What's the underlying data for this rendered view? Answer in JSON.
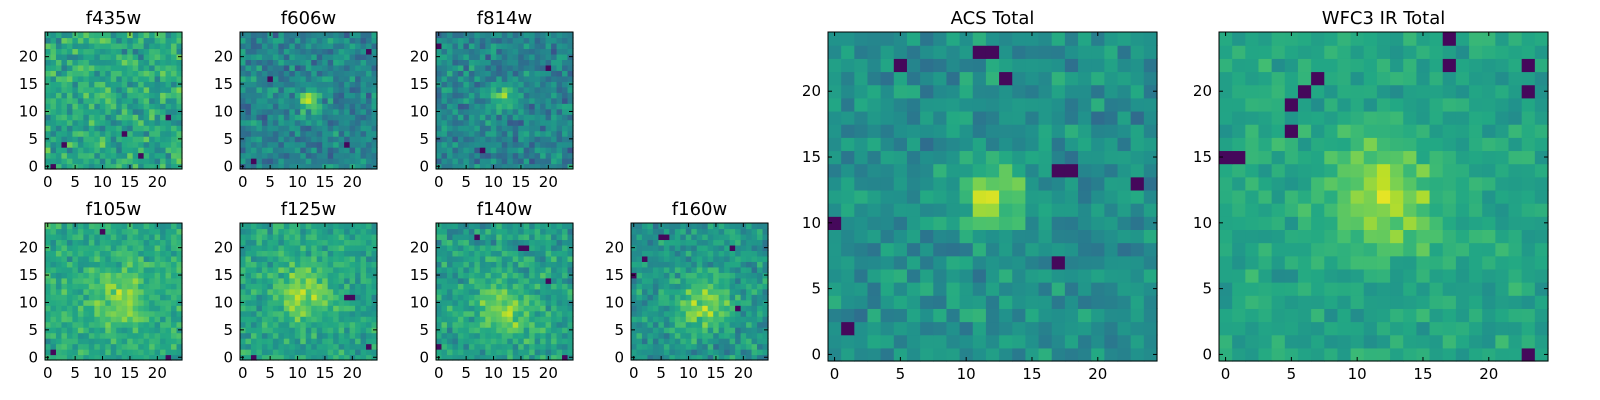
{
  "figure": {
    "description_colormap": "viridis",
    "colors": {
      "low": "#440154",
      "mid": "#21918c",
      "high": "#fde725"
    }
  },
  "chart_data": [
    {
      "type": "heatmap",
      "title": "f435w",
      "colormap": "viridis",
      "grid": false,
      "xlim": [
        0,
        24
      ],
      "ylim": [
        0,
        24
      ],
      "xticks": [
        "0",
        "5",
        "10",
        "15",
        "20"
      ],
      "yticks": [
        "0",
        "5",
        "10",
        "15",
        "20"
      ],
      "peak": {
        "x": 12,
        "y": 12,
        "amp": 0.05,
        "sigma": 3
      },
      "noise": 0.22,
      "bias": 0.6,
      "seed": 11,
      "dark_pixels": [
        [
          3,
          4
        ],
        [
          17,
          2
        ],
        [
          22,
          9
        ],
        [
          1,
          0
        ],
        [
          14,
          6
        ]
      ]
    },
    {
      "type": "heatmap",
      "title": "f606w",
      "colormap": "viridis",
      "grid": false,
      "xlim": [
        0,
        24
      ],
      "ylim": [
        0,
        24
      ],
      "xticks": [
        "0",
        "5",
        "10",
        "15",
        "20"
      ],
      "yticks": [
        "0",
        "5",
        "10",
        "15",
        "20"
      ],
      "peak": {
        "x": 12,
        "y": 12,
        "amp": 0.32,
        "sigma": 1.6
      },
      "noise": 0.2,
      "bias": 0.45,
      "seed": 23,
      "dark_pixels": [
        [
          2,
          1
        ],
        [
          19,
          4
        ],
        [
          23,
          21
        ],
        [
          5,
          16
        ]
      ]
    },
    {
      "type": "heatmap",
      "title": "f814w",
      "colormap": "viridis",
      "grid": false,
      "xlim": [
        0,
        24
      ],
      "ylim": [
        0,
        24
      ],
      "xticks": [
        "0",
        "5",
        "10",
        "15",
        "20"
      ],
      "yticks": [
        "0",
        "5",
        "10",
        "15",
        "20"
      ],
      "peak": {
        "x": 12,
        "y": 13,
        "amp": 0.35,
        "sigma": 1.6
      },
      "noise": 0.2,
      "bias": 0.45,
      "seed": 37,
      "dark_pixels": [
        [
          0,
          22
        ],
        [
          8,
          3
        ],
        [
          20,
          18
        ]
      ]
    },
    {
      "type": "heatmap",
      "title": "f105w",
      "colormap": "viridis",
      "grid": false,
      "xlim": [
        0,
        24
      ],
      "ylim": [
        0,
        24
      ],
      "xticks": [
        "0",
        "5",
        "10",
        "15",
        "20"
      ],
      "yticks": [
        "0",
        "5",
        "10",
        "15",
        "20"
      ],
      "peak": {
        "x": 13,
        "y": 11,
        "amp": 0.2,
        "sigma": 4
      },
      "noise": 0.16,
      "bias": 0.6,
      "seed": 41,
      "dark_pixels": [
        [
          1,
          1
        ],
        [
          22,
          0
        ],
        [
          10,
          23
        ]
      ]
    },
    {
      "type": "heatmap",
      "title": "f125w",
      "colormap": "viridis",
      "grid": false,
      "xlim": [
        0,
        24
      ],
      "ylim": [
        0,
        24
      ],
      "xticks": [
        "0",
        "5",
        "10",
        "15",
        "20"
      ],
      "yticks": [
        "0",
        "5",
        "10",
        "15",
        "20"
      ],
      "peak": {
        "x": 11,
        "y": 12,
        "amp": 0.25,
        "sigma": 3.5
      },
      "noise": 0.16,
      "bias": 0.58,
      "seed": 53,
      "dark_pixels": [
        [
          19,
          11
        ],
        [
          20,
          11
        ],
        [
          2,
          0
        ],
        [
          23,
          2
        ]
      ]
    },
    {
      "type": "heatmap",
      "title": "f140w",
      "colormap": "viridis",
      "grid": false,
      "xlim": [
        0,
        24
      ],
      "ylim": [
        0,
        24
      ],
      "xticks": [
        "0",
        "5",
        "10",
        "15",
        "20"
      ],
      "yticks": [
        "0",
        "5",
        "10",
        "15",
        "20"
      ],
      "peak": {
        "x": 12,
        "y": 9,
        "amp": 0.25,
        "sigma": 4
      },
      "noise": 0.18,
      "bias": 0.55,
      "seed": 67,
      "dark_pixels": [
        [
          15,
          20
        ],
        [
          16,
          20
        ],
        [
          23,
          0
        ],
        [
          0,
          2
        ],
        [
          7,
          22
        ],
        [
          20,
          14
        ]
      ]
    },
    {
      "type": "heatmap",
      "title": "f160w",
      "colormap": "viridis",
      "grid": false,
      "xlim": [
        0,
        24
      ],
      "ylim": [
        0,
        24
      ],
      "xticks": [
        "0",
        "5",
        "10",
        "15",
        "20"
      ],
      "yticks": [
        "0",
        "5",
        "10",
        "15",
        "20"
      ],
      "peak": {
        "x": 13,
        "y": 10,
        "amp": 0.3,
        "sigma": 3.5
      },
      "noise": 0.18,
      "bias": 0.52,
      "seed": 79,
      "dark_pixels": [
        [
          5,
          22
        ],
        [
          6,
          22
        ],
        [
          18,
          20
        ],
        [
          0,
          15
        ],
        [
          2,
          18
        ],
        [
          19,
          9
        ]
      ]
    },
    {
      "type": "heatmap",
      "title": "ACS Total",
      "colormap": "viridis",
      "grid": false,
      "xlim": [
        0,
        24
      ],
      "ylim": [
        0,
        24
      ],
      "xticks": [
        "0",
        "5",
        "10",
        "15",
        "20"
      ],
      "yticks": [
        "0",
        "5",
        "10",
        "15",
        "20"
      ],
      "peak": {
        "x": 12,
        "y": 12,
        "amp": 0.4,
        "sigma": 1.8
      },
      "noise": 0.16,
      "bias": 0.5,
      "seed": 97,
      "dark_pixels": [
        [
          11,
          23
        ],
        [
          12,
          23
        ],
        [
          5,
          22
        ],
        [
          13,
          21
        ],
        [
          18,
          14
        ],
        [
          17,
          14
        ],
        [
          23,
          13
        ],
        [
          0,
          10
        ],
        [
          1,
          2
        ],
        [
          17,
          7
        ]
      ]
    },
    {
      "type": "heatmap",
      "title": "WFC3 IR Total",
      "colormap": "viridis",
      "grid": false,
      "xlim": [
        0,
        24
      ],
      "ylim": [
        0,
        24
      ],
      "xticks": [
        "0",
        "5",
        "10",
        "15",
        "20"
      ],
      "yticks": [
        "0",
        "5",
        "10",
        "15",
        "20"
      ],
      "peak": {
        "x": 12,
        "y": 12,
        "amp": 0.3,
        "sigma": 3
      },
      "noise": 0.12,
      "bias": 0.58,
      "seed": 113,
      "dark_pixels": [
        [
          0,
          15
        ],
        [
          1,
          15
        ],
        [
          5,
          19
        ],
        [
          5,
          17
        ],
        [
          6,
          20
        ],
        [
          7,
          21
        ],
        [
          17,
          24
        ],
        [
          23,
          0
        ],
        [
          23,
          20
        ],
        [
          23,
          22
        ],
        [
          17,
          22
        ]
      ]
    }
  ]
}
